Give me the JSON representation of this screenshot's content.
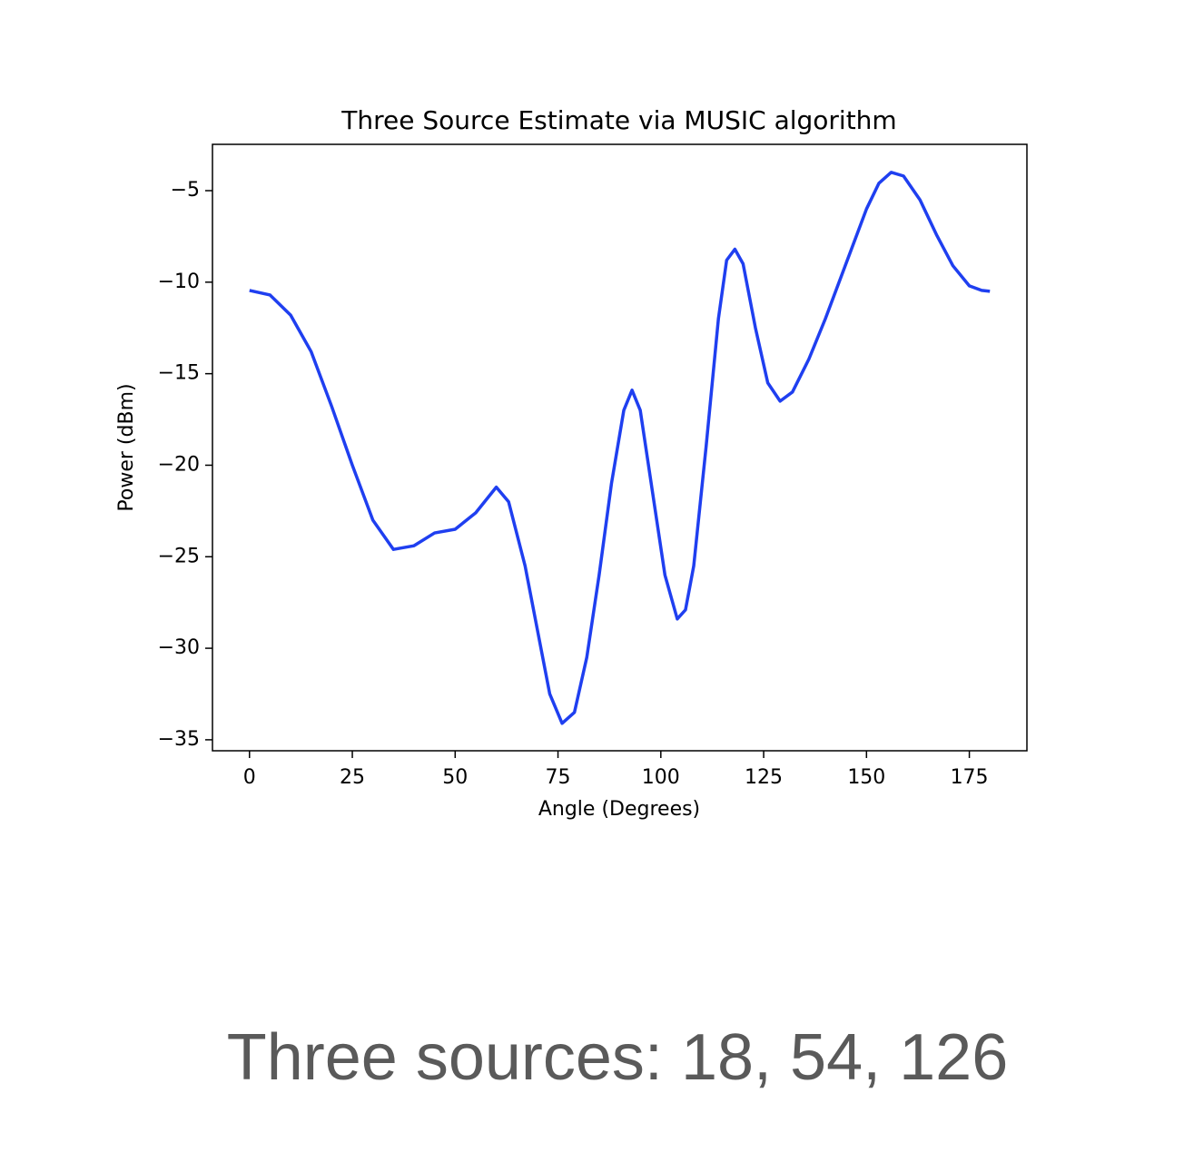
{
  "chart_data": {
    "type": "line",
    "title": "Three Source Estimate via MUSIC algorithm",
    "x_label": "Angle (Degrees)",
    "y_label": "Power (dBm)",
    "x": [
      0,
      5,
      10,
      15,
      20,
      25,
      30,
      35,
      40,
      45,
      50,
      55,
      60,
      63,
      67,
      70,
      73,
      76,
      79,
      82,
      85,
      88,
      91,
      93,
      95,
      98,
      101,
      104,
      106,
      108,
      111,
      114,
      116,
      118,
      120,
      123,
      126,
      129,
      132,
      136,
      140,
      145,
      150,
      153,
      156,
      159,
      163,
      167,
      171,
      175,
      178,
      180
    ],
    "values": [
      -10.45,
      -10.7,
      -11.8,
      -13.8,
      -16.8,
      -20.0,
      -23.0,
      -24.6,
      -24.4,
      -23.7,
      -23.5,
      -22.6,
      -21.2,
      -22.0,
      -25.5,
      -29.0,
      -32.5,
      -34.1,
      -33.5,
      -30.5,
      -26.0,
      -21.0,
      -17.0,
      -15.9,
      -17.0,
      -21.5,
      -26.0,
      -28.4,
      -27.9,
      -25.5,
      -19.0,
      -12.0,
      -8.8,
      -8.2,
      -9.0,
      -12.5,
      -15.5,
      -16.5,
      -16.0,
      -14.2,
      -12.0,
      -9.0,
      -6.0,
      -4.6,
      -4.0,
      -4.2,
      -5.5,
      -7.4,
      -9.1,
      -10.2,
      -10.45,
      -10.5
    ],
    "color": "#1f3ff0",
    "xlim": [
      -9,
      189
    ],
    "xticks": [
      0,
      25,
      50,
      75,
      100,
      125,
      150,
      175
    ],
    "ylim": [
      -35.6,
      -2.47
    ],
    "yticks": [
      {
        "value": -35,
        "label": "−35"
      },
      {
        "value": -30,
        "label": "−30"
      },
      {
        "value": -25,
        "label": "−25"
      },
      {
        "value": -20,
        "label": "−20"
      },
      {
        "value": -15,
        "label": "−15"
      },
      {
        "value": -10,
        "label": "−10"
      },
      {
        "value": -5,
        "label": "−5"
      }
    ]
  },
  "caption": "Three sources: 18, 54, 126"
}
